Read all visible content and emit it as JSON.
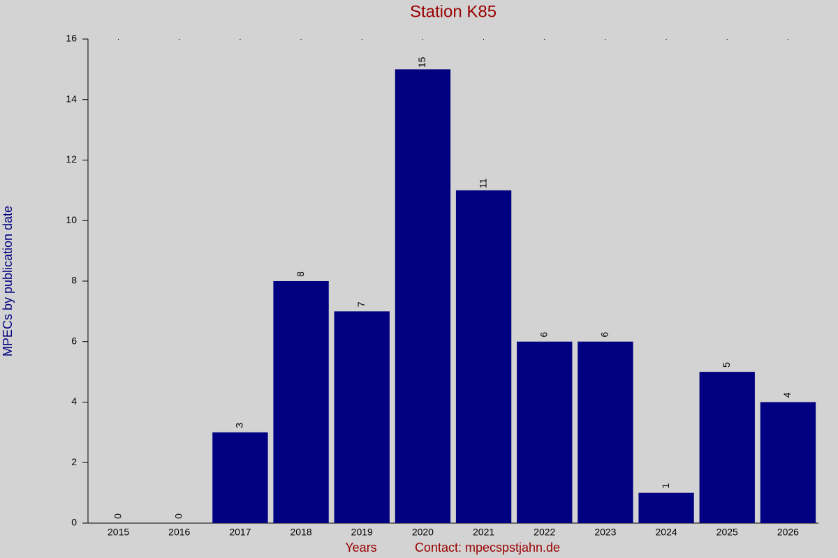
{
  "chart_data": {
    "type": "bar",
    "title": "Station K85",
    "x_label": "Years",
    "y_label": "MPECs by publication date",
    "footer": "Contact: mpecspstjahn.de",
    "categories": [
      "2015",
      "2016",
      "2017",
      "2018",
      "2019",
      "2020",
      "2021",
      "2022",
      "2023",
      "2024",
      "2025",
      "2026"
    ],
    "values": [
      0,
      0,
      3,
      8,
      7,
      15,
      11,
      6,
      6,
      1,
      5,
      4
    ],
    "color": "#000080",
    "ylim": [
      0,
      16
    ],
    "yticks": [
      0,
      2,
      4,
      6,
      8,
      10,
      12,
      14,
      16
    ],
    "grid": false
  }
}
